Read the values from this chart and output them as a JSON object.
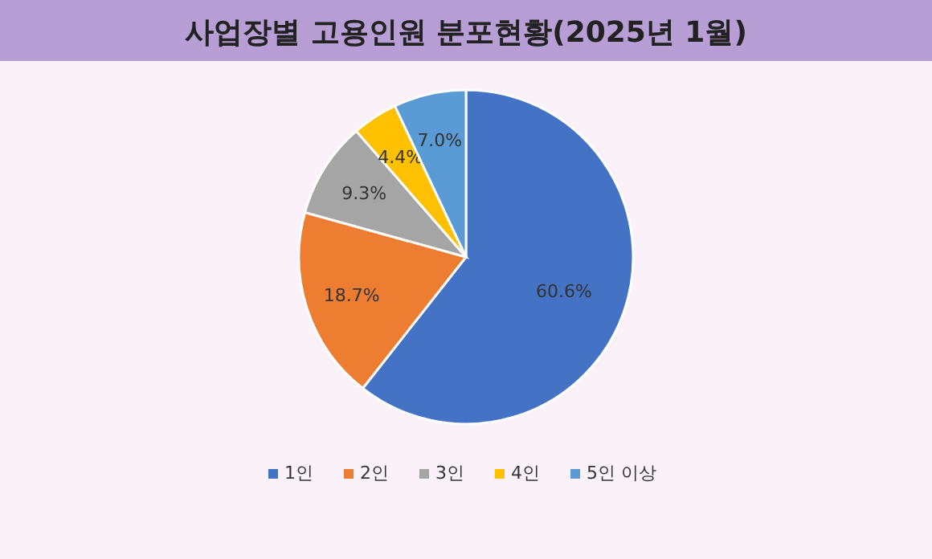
{
  "chart_data": {
    "type": "pie",
    "title": "사업장별 고용인원 분포현황(2025년 1월)",
    "categories": [
      "1인",
      "2인",
      "3인",
      "4인",
      "5인 이상"
    ],
    "values": [
      60.6,
      18.7,
      9.3,
      4.4,
      7.0
    ],
    "value_labels": [
      "60.6%",
      "18.7%",
      "9.3%",
      "4.4%",
      "7.0%"
    ],
    "colors": [
      "#4472c4",
      "#ed7d31",
      "#a5a5a5",
      "#ffc000",
      "#5b9bd5"
    ],
    "legend": "bottom"
  }
}
